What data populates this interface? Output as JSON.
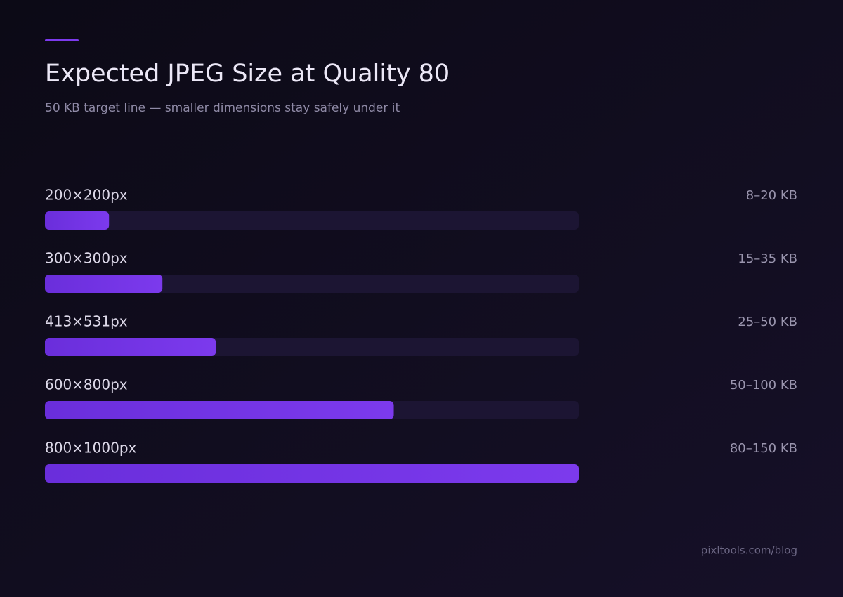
{
  "chart_data": {
    "type": "hbar",
    "title": "Expected JPEG Size at Quality 80",
    "subtitle": "50 KB target line — smaller dimensions stay safely under it",
    "categories": [
      "200×200px",
      "300×300px",
      "413×531px",
      "600×800px",
      "800×1000px"
    ],
    "values": [
      18,
      33,
      48,
      98,
      150
    ],
    "range_labels": [
      "8–20 KB",
      "15–35 KB",
      "25–50 KB",
      "50–100 KB",
      "80–150 KB"
    ],
    "xlim": [
      0,
      150
    ],
    "color": "#7c3aed",
    "footer": "pixltools.com/blog"
  }
}
